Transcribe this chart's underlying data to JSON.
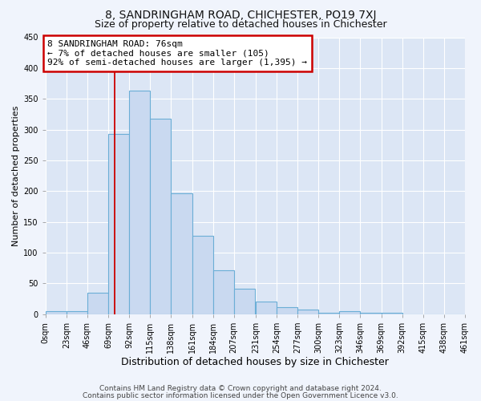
{
  "title": "8, SANDRINGHAM ROAD, CHICHESTER, PO19 7XJ",
  "subtitle": "Size of property relative to detached houses in Chichester",
  "xlabel": "Distribution of detached houses by size in Chichester",
  "ylabel": "Number of detached properties",
  "bar_values": [
    5,
    5,
    35,
    293,
    363,
    318,
    197,
    128,
    72,
    41,
    21,
    12,
    7,
    3,
    5,
    3,
    2,
    0,
    0,
    0
  ],
  "bin_edges": [
    0,
    23,
    46,
    69,
    92,
    115,
    138,
    161,
    184,
    207,
    231,
    254,
    277,
    300,
    323,
    346,
    369,
    392,
    415,
    438,
    461
  ],
  "tick_labels": [
    "0sqm",
    "23sqm",
    "46sqm",
    "69sqm",
    "92sqm",
    "115sqm",
    "138sqm",
    "161sqm",
    "184sqm",
    "207sqm",
    "231sqm",
    "254sqm",
    "277sqm",
    "300sqm",
    "323sqm",
    "346sqm",
    "369sqm",
    "392sqm",
    "415sqm",
    "438sqm",
    "461sqm"
  ],
  "bar_color": "#c9d9f0",
  "bar_edge_color": "#6baed6",
  "red_line_x": 76,
  "ylim": [
    0,
    450
  ],
  "yticks": [
    0,
    50,
    100,
    150,
    200,
    250,
    300,
    350,
    400,
    450
  ],
  "annotation_title": "8 SANDRINGHAM ROAD: 76sqm",
  "annotation_line1": "← 7% of detached houses are smaller (105)",
  "annotation_line2": "92% of semi-detached houses are larger (1,395) →",
  "annotation_box_facecolor": "#ffffff",
  "annotation_box_edgecolor": "#cc0000",
  "plot_bg_color": "#dce6f5",
  "fig_bg_color": "#f0f4fc",
  "footer1": "Contains HM Land Registry data © Crown copyright and database right 2024.",
  "footer2": "Contains public sector information licensed under the Open Government Licence v3.0.",
  "grid_color": "#ffffff",
  "title_fontsize": 10,
  "subtitle_fontsize": 9,
  "xlabel_fontsize": 9,
  "ylabel_fontsize": 8,
  "tick_fontsize": 7,
  "annotation_fontsize": 8,
  "footer_fontsize": 6.5
}
